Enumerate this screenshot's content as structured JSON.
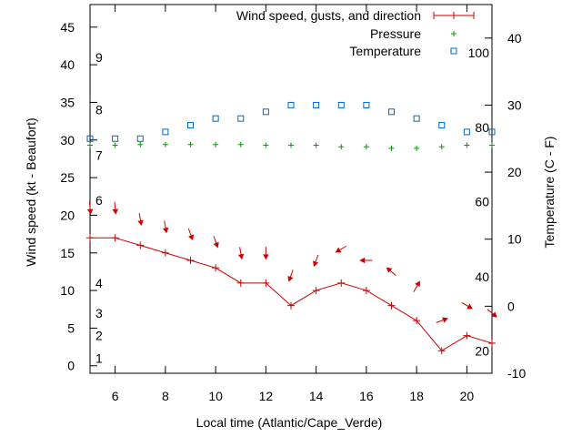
{
  "chart_data": {
    "type": "line",
    "xlabel": "Local time (Atlantic/Cape_Verde)",
    "ylabel_left": "Wind speed (kt - Beaufort)",
    "ylabel_right": "Temperature (C - F)",
    "x_range": [
      5,
      21
    ],
    "y_left_range": [
      -1,
      48
    ],
    "y_right_range": [
      -10,
      45
    ],
    "x_ticks": [
      "6",
      "8",
      "10",
      "12",
      "14",
      "16",
      "18",
      "20"
    ],
    "y_left_ticks": [
      "0",
      "5",
      "10",
      "15",
      "20",
      "25",
      "30",
      "35",
      "40",
      "45"
    ],
    "y_right_ticks": [
      "-10",
      "0",
      "10",
      "20",
      "30",
      "40"
    ],
    "beaufort_labels": [
      {
        "label": "1",
        "kt": 1
      },
      {
        "label": "2",
        "kt": 4
      },
      {
        "label": "3",
        "kt": 7
      },
      {
        "label": "4",
        "kt": 11
      },
      {
        "label": "6",
        "kt": 22
      },
      {
        "label": "7",
        "kt": 28
      },
      {
        "label": "8",
        "kt": 34
      },
      {
        "label": "9",
        "kt": 41
      }
    ],
    "fahrenheit_labels": [
      {
        "label": "20",
        "c": -6.7
      },
      {
        "label": "40",
        "c": 4.4
      },
      {
        "label": "60",
        "c": 15.6
      },
      {
        "label": "80",
        "c": 26.7
      },
      {
        "label": "100",
        "c": 37.8
      }
    ],
    "legend": [
      {
        "label": "Wind speed, gusts, and direction",
        "color": "#cc0000"
      },
      {
        "label": "Pressure",
        "color": "#009900"
      },
      {
        "label": "Temperature",
        "color": "#0066cc"
      }
    ],
    "x": [
      5,
      6,
      7,
      8,
      9,
      10,
      11,
      12,
      13,
      14,
      15,
      16,
      17,
      18,
      19,
      20,
      21
    ],
    "wind_speed": [
      17,
      17,
      16,
      15,
      14,
      13,
      11,
      11,
      8,
      10,
      11,
      10,
      8,
      6,
      2,
      4,
      3
    ],
    "gust_arrows_kt": [
      21,
      21,
      19.5,
      18.5,
      17.5,
      16.5,
      15,
      15,
      12,
      14,
      15.5,
      14,
      12.5,
      10.5,
      6,
      8,
      7
    ],
    "wind_direction_deg": [
      355,
      355,
      350,
      350,
      340,
      340,
      350,
      0,
      20,
      20,
      60,
      90,
      130,
      210,
      250,
      300,
      310
    ],
    "pressure_kt_axis": [
      29.3,
      29.3,
      29.4,
      29.4,
      29.4,
      29.4,
      29.4,
      29.3,
      29.3,
      29.3,
      29.1,
      29.1,
      28.9,
      28.9,
      29.1,
      29.3,
      29.3
    ],
    "temperature_c": [
      25.0,
      25.0,
      25.0,
      26.0,
      27.0,
      28.0,
      28.0,
      29.0,
      30.0,
      30.0,
      30.0,
      30.0,
      29.0,
      28.0,
      27.0,
      26.0,
      26.0
    ],
    "grid": false,
    "legend_position": "top-right"
  }
}
